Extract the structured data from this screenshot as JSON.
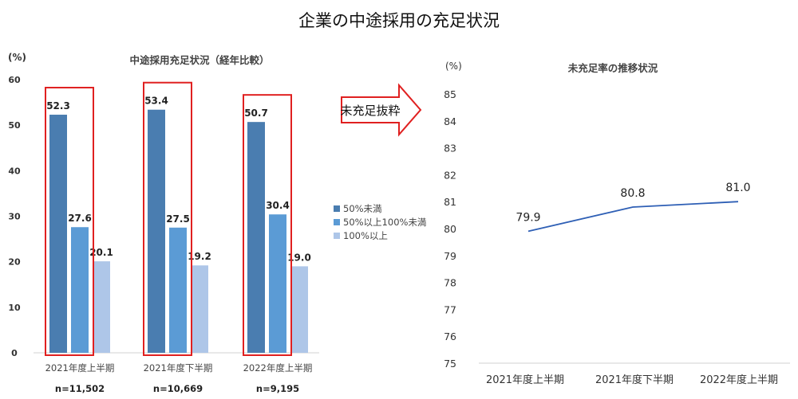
{
  "title": "企業の中途採用の充足状況",
  "arrow_label": "未充足抜粋",
  "chart_data": [
    {
      "type": "bar",
      "title": "中途採用充足状況（経年比較）",
      "ylabel": "(%)",
      "ylim": [
        0,
        60
      ],
      "yticks": [
        0,
        10,
        20,
        30,
        40,
        50,
        60
      ],
      "categories": [
        "2021年度上半期",
        "2021年度下半期",
        "2022年度上半期"
      ],
      "sample_sizes": [
        "n=11,502",
        "n=10,669",
        "n=9,195"
      ],
      "legend_position": "right",
      "series": [
        {
          "name": "50%未満",
          "color": "#4a7db0",
          "values": [
            52.3,
            53.4,
            50.7
          ],
          "labels": [
            "52.3",
            "53.4",
            "50.7"
          ]
        },
        {
          "name": "50%以上100%未満",
          "color": "#5b9bd5",
          "values": [
            27.6,
            27.5,
            30.4
          ],
          "labels": [
            "27.6",
            "27.5",
            "30.4"
          ]
        },
        {
          "name": "100%以上",
          "color": "#aec6e8",
          "values": [
            20.1,
            19.2,
            19.0
          ],
          "labels": [
            "20.1",
            "19.2",
            "19.0"
          ]
        }
      ],
      "highlight_color": "#e02020",
      "grid": false
    },
    {
      "type": "line",
      "title": "未充足率の推移状況",
      "ylabel": "(%)",
      "ylim": [
        75,
        85
      ],
      "yticks": [
        75,
        76,
        77,
        78,
        79,
        80,
        81,
        82,
        83,
        84,
        85
      ],
      "categories": [
        "2021年度上半期",
        "2021年度下半期",
        "2022年度上半期"
      ],
      "series": [
        {
          "color": "#2e5fb5",
          "values": [
            79.9,
            80.8,
            81.0
          ],
          "labels": [
            "79.9",
            "80.8",
            "81.0"
          ]
        }
      ],
      "grid": false
    }
  ]
}
